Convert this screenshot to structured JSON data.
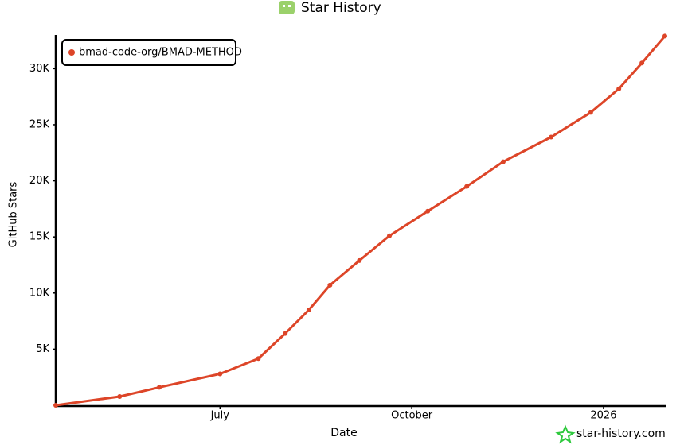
{
  "chart_data": {
    "type": "line",
    "title": "Star History",
    "x_label": "Date",
    "y_label": "GitHub Stars",
    "credit": "star-history.com",
    "x": [
      4.43,
      5.43,
      6.05,
      7.0,
      7.6,
      8.02,
      8.39,
      8.72,
      9.18,
      9.65,
      10.25,
      10.86,
      11.43,
      12.18,
      12.8,
      13.24,
      13.6,
      13.96
    ],
    "series": [
      {
        "name": "bmad-code-org/BMAD-METHOD",
        "color": "#dd4528",
        "values": [
          0,
          780,
          1600,
          2800,
          4160,
          6400,
          8500,
          10700,
          12900,
          15100,
          17300,
          19500,
          21700,
          23900,
          26100,
          28200,
          30500,
          32900
        ]
      }
    ],
    "xlim": [
      4.43,
      13.96
    ],
    "xticks": [
      {
        "value": 7,
        "label": "July"
      },
      {
        "value": 10,
        "label": "October"
      },
      {
        "value": 13,
        "label": "2026"
      }
    ],
    "ylim": [
      0,
      33000
    ],
    "yticks": [
      {
        "value": 5000,
        "label": "5K"
      },
      {
        "value": 10000,
        "label": "10K"
      },
      {
        "value": 15000,
        "label": "15K"
      },
      {
        "value": 20000,
        "label": "20K"
      },
      {
        "value": 25000,
        "label": "25K"
      },
      {
        "value": 30000,
        "label": "30K"
      }
    ],
    "grid": false,
    "legend": "top-left"
  }
}
